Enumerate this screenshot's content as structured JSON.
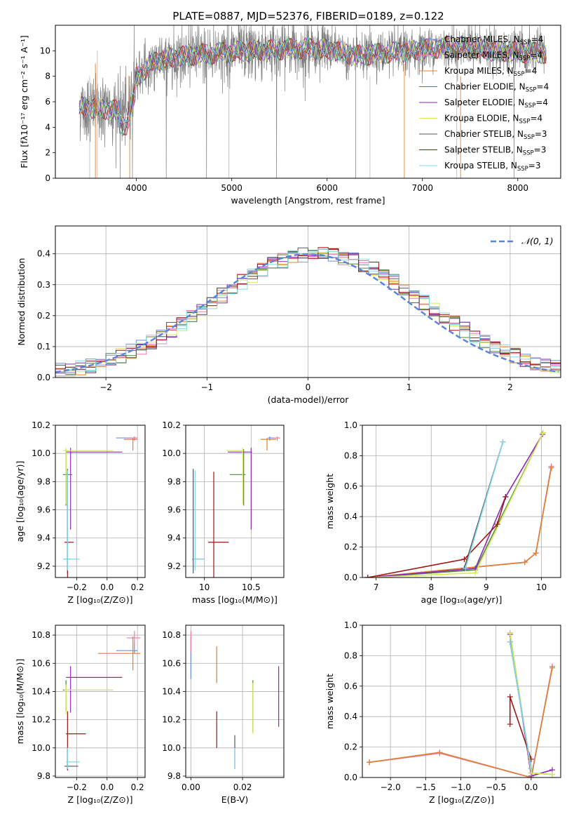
{
  "figure_title": "PLATE=0887, MJD=52376, FIBERID=0189, z=0.122",
  "colors": {
    "Chabrier MILES": "#6a8fe0",
    "Salpeter MILES": "#f07aa8",
    "Kroupa MILES": "#e08030",
    "Chabrier ELODIE": "#4f8a3f",
    "Salpeter ELODIE": "#8d2ab8",
    "Kroupa ELODIE": "#d8e85a",
    "Chabrier STELIB": "#555555",
    "Salpeter STELIB": "#a01515",
    "Kroupa STELIB": "#80d8e8",
    "gaussian": "#5b86d8",
    "grid": "#b0b0b0"
  },
  "legend": [
    {
      "name": "Chabrier MILES",
      "label": "Chabrier MILES, N",
      "sub": "SSP",
      "tail": "=4"
    },
    {
      "name": "Salpeter MILES",
      "label": "Salpeter MILES, N",
      "sub": "SSP",
      "tail": "=4"
    },
    {
      "name": "Kroupa MILES",
      "label": "Kroupa MILES, N",
      "sub": "SSP",
      "tail": "=4"
    },
    {
      "name": "Chabrier ELODIE",
      "label": "Chabrier ELODIE, N",
      "sub": "SSP",
      "tail": "=4"
    },
    {
      "name": "Salpeter ELODIE",
      "label": "Salpeter ELODIE, N",
      "sub": "SSP",
      "tail": "=4"
    },
    {
      "name": "Kroupa ELODIE",
      "label": "Kroupa ELODIE, N",
      "sub": "SSP",
      "tail": "=4"
    },
    {
      "name": "Chabrier STELIB",
      "label": "Chabrier STELIB, N",
      "sub": "SSP",
      "tail": "=3"
    },
    {
      "name": "Salpeter STELIB",
      "label": "Salpeter STELIB, N",
      "sub": "SSP",
      "tail": "=3"
    },
    {
      "name": "Kroupa STELIB",
      "label": "Kroupa STELIB, N",
      "sub": "SSP",
      "tail": "=3"
    }
  ],
  "chart_data": [
    {
      "id": "spectrum",
      "type": "line",
      "xlabel": "wavelength [Angstrom, rest frame]",
      "ylabel": "Flux [fλ10⁻¹⁷ erg cm⁻² s⁻¹ A⁻¹]",
      "xlim": [
        3150,
        8450
      ],
      "ylim": [
        0,
        12
      ],
      "xticks": [
        4000,
        5000,
        6000,
        7000,
        8000
      ],
      "yticks": [
        0,
        2,
        4,
        6,
        8,
        10
      ],
      "grid": false,
      "legend_position": "right",
      "data_wavelength_range": [
        3400,
        8300
      ],
      "model_anchor_points": {
        "x": [
          3400,
          3700,
          3900,
          4000,
          4200,
          4500,
          5000,
          5500,
          5800,
          6100,
          6300,
          6600,
          6900,
          7100,
          7400,
          7700,
          8000,
          8300
        ],
        "y": [
          5.6,
          5.4,
          5.2,
          8.0,
          9.2,
          9.6,
          9.9,
          10.1,
          10.2,
          10.0,
          9.6,
          9.8,
          10.0,
          10.2,
          10.3,
          10.0,
          9.9,
          9.8
        ]
      }
    },
    {
      "id": "residuals",
      "type": "step",
      "xlabel": "(data-model)/error",
      "ylabel": "Normed distribution",
      "xlim": [
        -2.5,
        2.5
      ],
      "ylim": [
        0,
        0.49
      ],
      "xticks": [
        -2,
        -1,
        0,
        1,
        2
      ],
      "xtick_labels": [
        "−2",
        "−1",
        "0",
        "1",
        "2"
      ],
      "yticks": [
        0.0,
        0.1,
        0.2,
        0.3,
        0.4
      ],
      "grid": true,
      "legend": {
        "label": "𝒩(0, 1)",
        "position": "top-right"
      },
      "gaussian": {
        "mean": 0,
        "sigma": 1
      }
    },
    {
      "id": "age_vs_Z",
      "type": "errorbar",
      "xlabel": "Z [log₁₀(Z/Z⊙)]",
      "ylabel": "age  [log₁₀(age/yr)]",
      "xlim": [
        -0.34,
        0.25
      ],
      "ylim": [
        9.12,
        10.2
      ],
      "xticks": [
        -0.2,
        0.0,
        0.2
      ],
      "xtick_labels": [
        "−0.2",
        "0.0",
        "0.2"
      ],
      "yticks": [
        9.2,
        9.4,
        9.6,
        9.8,
        10.0,
        10.2
      ],
      "grid": true,
      "points": [
        {
          "series": "Chabrier MILES",
          "x": 0.18,
          "xerr": [
            0.12,
            0.02
          ],
          "y": 10.11,
          "yerr": [
            0.02,
            0.01
          ]
        },
        {
          "series": "Salpeter MILES",
          "x": 0.18,
          "xerr": [
            0.05,
            0.02
          ],
          "y": 10.11,
          "yerr": [
            0.02,
            0.01
          ]
        },
        {
          "series": "Kroupa MILES",
          "x": 0.17,
          "xerr": [
            0.06,
            0.03
          ],
          "y": 10.1,
          "yerr": [
            0.08,
            0.01
          ]
        },
        {
          "series": "Chabrier ELODIE",
          "x": -0.27,
          "xerr": [
            0.02,
            0.04
          ],
          "y": 9.85,
          "yerr": [
            0.22,
            0.18
          ]
        },
        {
          "series": "Salpeter ELODIE",
          "x": -0.24,
          "xerr": [
            0.03,
            0.34
          ],
          "y": 10.01,
          "yerr": [
            0.55,
            0.03
          ]
        },
        {
          "series": "Kroupa ELODIE",
          "x": -0.27,
          "xerr": [
            0.02,
            0.31
          ],
          "y": 10.02,
          "yerr": [
            0.38,
            0.02
          ]
        },
        {
          "series": "Chabrier STELIB",
          "x": -0.26,
          "xerr": [
            0.02,
            0.02
          ],
          "y": 9.25,
          "yerr": [
            0.1,
            0.64
          ]
        },
        {
          "series": "Salpeter STELIB",
          "x": -0.26,
          "xerr": [
            0.02,
            0.04
          ],
          "y": 9.37,
          "yerr": [
            0.25,
            0.5
          ]
        },
        {
          "series": "Kroupa STELIB",
          "x": -0.26,
          "xerr": [
            0.03,
            0.08
          ],
          "y": 9.25,
          "yerr": [
            0.08,
            0.63
          ]
        }
      ]
    },
    {
      "id": "age_vs_mass",
      "type": "errorbar",
      "xlabel": "mass [log₁₀(M/M⊙)]",
      "ylabel": "",
      "xlim": [
        9.8,
        10.85
      ],
      "ylim": [
        9.12,
        10.2
      ],
      "xticks": [
        10.0,
        10.5
      ],
      "yticks": [
        9.2,
        9.4,
        9.6,
        9.8,
        10.0,
        10.2
      ],
      "grid": true,
      "points": [
        {
          "series": "Chabrier MILES",
          "x": 10.7,
          "xerr": [
            0.02,
            0.06
          ],
          "y": 10.11,
          "yerr": [
            0.02,
            0.01
          ]
        },
        {
          "series": "Salpeter MILES",
          "x": 10.78,
          "xerr": [
            0.05,
            0.03
          ],
          "y": 10.11,
          "yerr": [
            0.02,
            0.01
          ]
        },
        {
          "series": "Kroupa MILES",
          "x": 10.67,
          "xerr": [
            0.07,
            0.1
          ],
          "y": 10.1,
          "yerr": [
            0.08,
            0.01
          ]
        },
        {
          "series": "Chabrier ELODIE",
          "x": 10.42,
          "xerr": [
            0.15,
            0.02
          ],
          "y": 9.85,
          "yerr": [
            0.22,
            0.18
          ]
        },
        {
          "series": "Salpeter ELODIE",
          "x": 10.5,
          "xerr": [
            0.25,
            0.01
          ],
          "y": 10.01,
          "yerr": [
            0.55,
            0.03
          ]
        },
        {
          "series": "Kroupa ELODIE",
          "x": 10.41,
          "xerr": [
            0.17,
            0.01
          ],
          "y": 10.02,
          "yerr": [
            0.38,
            0.02
          ]
        },
        {
          "series": "Chabrier STELIB",
          "x": 9.88,
          "xerr": [
            0.01,
            0.12
          ],
          "y": 9.25,
          "yerr": [
            0.1,
            0.64
          ]
        },
        {
          "series": "Salpeter STELIB",
          "x": 10.1,
          "xerr": [
            0.06,
            0.16
          ],
          "y": 9.37,
          "yerr": [
            0.25,
            0.5
          ]
        },
        {
          "series": "Kroupa STELIB",
          "x": 9.9,
          "xerr": [
            0.02,
            0.1
          ],
          "y": 9.25,
          "yerr": [
            0.08,
            0.63
          ]
        }
      ]
    },
    {
      "id": "weight_vs_age",
      "type": "line",
      "xlabel": "age  [log₁₀(age/yr)]",
      "ylabel": "mass weight",
      "xlim": [
        6.75,
        10.35
      ],
      "ylim": [
        0,
        1.0
      ],
      "xticks": [
        7,
        8,
        9,
        10
      ],
      "yticks": [
        0.0,
        0.2,
        0.4,
        0.6,
        0.8,
        1.0
      ],
      "grid": true,
      "series": [
        {
          "name": "Chabrier MILES",
          "x": [
            6.85,
            9.7,
            9.9,
            10.18
          ],
          "y": [
            0.0,
            0.1,
            0.16,
            0.73
          ]
        },
        {
          "name": "Salpeter MILES",
          "x": [
            6.85,
            9.7,
            9.9,
            10.18
          ],
          "y": [
            0.0,
            0.1,
            0.16,
            0.73
          ]
        },
        {
          "name": "Kroupa MILES",
          "x": [
            6.85,
            9.7,
            9.9,
            10.18
          ],
          "y": [
            0.0,
            0.1,
            0.16,
            0.72
          ]
        },
        {
          "name": "Chabrier ELODIE",
          "x": [
            6.85,
            8.8,
            10.03
          ],
          "y": [
            0.0,
            0.05,
            0.95
          ]
        },
        {
          "name": "Salpeter ELODIE",
          "x": [
            6.85,
            8.8,
            9.35,
            10.02
          ],
          "y": [
            0.0,
            0.06,
            0.53,
            0.94
          ]
        },
        {
          "name": "Kroupa ELODIE",
          "x": [
            6.85,
            8.8,
            10.03
          ],
          "y": [
            0.0,
            0.03,
            0.95
          ]
        },
        {
          "name": "Chabrier STELIB",
          "x": [
            8.6,
            9.3
          ],
          "y": [
            0.06,
            0.89
          ]
        },
        {
          "name": "Salpeter STELIB",
          "x": [
            6.85,
            8.6,
            9.2,
            9.35
          ],
          "y": [
            0.0,
            0.12,
            0.35,
            0.53
          ]
        },
        {
          "name": "Kroupa STELIB",
          "x": [
            8.62,
            9.3
          ],
          "y": [
            0.06,
            0.89
          ]
        }
      ]
    },
    {
      "id": "mass_vs_Z",
      "type": "errorbar",
      "xlabel": "Z [log₁₀(Z/Z⊙)]",
      "ylabel": "mass [log₁₀(M/M⊙)]",
      "xlim": [
        -0.34,
        0.25
      ],
      "ylim": [
        9.79,
        10.87
      ],
      "xticks": [
        -0.2,
        0.0,
        0.2
      ],
      "xtick_labels": [
        "−0.2",
        "0.0",
        "0.2"
      ],
      "yticks": [
        9.8,
        10.0,
        10.2,
        10.4,
        10.6,
        10.8
      ],
      "grid": true,
      "points": [
        {
          "series": "Chabrier MILES",
          "x": 0.18,
          "xerr": [
            0.12,
            0.02
          ],
          "y": 10.69,
          "yerr": [
            0.02,
            0.06
          ]
        },
        {
          "series": "Salpeter MILES",
          "x": 0.18,
          "xerr": [
            0.05,
            0.04
          ],
          "y": 10.78,
          "yerr": [
            0.05,
            0.05
          ]
        },
        {
          "series": "Kroupa MILES",
          "x": 0.17,
          "xerr": [
            0.23,
            0.05
          ],
          "y": 10.67,
          "yerr": [
            0.12,
            0.12
          ]
        },
        {
          "series": "Chabrier ELODIE",
          "x": -0.27,
          "xerr": [
            0.02,
            0.3
          ],
          "y": 10.41,
          "yerr": [
            0.15,
            0.07
          ]
        },
        {
          "series": "Salpeter ELODIE",
          "x": -0.24,
          "xerr": [
            0.03,
            0.34
          ],
          "y": 10.5,
          "yerr": [
            0.25,
            0.08
          ]
        },
        {
          "series": "Kroupa ELODIE",
          "x": -0.27,
          "xerr": [
            0.01,
            0.31
          ],
          "y": 10.41,
          "yerr": [
            0.17,
            0.04
          ]
        },
        {
          "series": "Chabrier STELIB",
          "x": -0.26,
          "xerr": [
            0.02,
            0.07
          ],
          "y": 9.87,
          "yerr": [
            0.02,
            0.12
          ]
        },
        {
          "series": "Salpeter STELIB",
          "x": -0.26,
          "xerr": [
            0.01,
            0.12
          ],
          "y": 10.1,
          "yerr": [
            0.26,
            0.16
          ]
        },
        {
          "series": "Kroupa STELIB",
          "x": -0.26,
          "xerr": [
            0.01,
            0.08
          ],
          "y": 9.9,
          "yerr": [
            0.05,
            0.1
          ]
        }
      ]
    },
    {
      "id": "mass_vs_ebv",
      "type": "errorbar",
      "xlabel": "E(B-V)",
      "ylabel": "",
      "xlim": [
        -0.002,
        0.036
      ],
      "ylim": [
        9.79,
        10.87
      ],
      "xticks": [
        0.0,
        0.02
      ],
      "xtick_labels": [
        "0.00",
        "0.02"
      ],
      "yticks": [
        9.8,
        10.0,
        10.2,
        10.4,
        10.6,
        10.8
      ],
      "grid": true,
      "points": [
        {
          "series": "Chabrier MILES",
          "x": 0.0,
          "y": 10.69,
          "yerr": [
            0.2,
            0.1
          ]
        },
        {
          "series": "Salpeter MILES",
          "x": 0.0,
          "y": 10.78,
          "yerr": [
            0.1,
            0.05
          ]
        },
        {
          "series": "Kroupa MILES",
          "x": 0.01,
          "y": 10.6,
          "yerr": [
            0.14,
            0.12
          ]
        },
        {
          "series": "Chabrier ELODIE",
          "x": 0.024,
          "y": 10.41,
          "yerr": [
            0.3,
            0.07
          ]
        },
        {
          "series": "Salpeter ELODIE",
          "x": 0.034,
          "y": 10.5,
          "yerr": [
            0.35,
            0.08
          ]
        },
        {
          "series": "Kroupa ELODIE",
          "x": 0.024,
          "y": 10.41,
          "yerr": [
            0.31,
            0.05
          ]
        },
        {
          "series": "Chabrier STELIB",
          "x": 0.017,
          "y": 9.87,
          "yerr": [
            0.02,
            0.22
          ]
        },
        {
          "series": "Salpeter STELIB",
          "x": 0.01,
          "y": 10.1,
          "yerr": [
            0.1,
            0.16
          ]
        },
        {
          "series": "Kroupa STELIB",
          "x": 0.017,
          "y": 9.9,
          "yerr": [
            0.05,
            0.1
          ]
        }
      ]
    },
    {
      "id": "weight_vs_Z",
      "type": "line",
      "xlabel": "Z [log₁₀(Z/Z⊙)]",
      "ylabel": "mass weight",
      "xlim": [
        -2.4,
        0.42
      ],
      "ylim": [
        0,
        1.0
      ],
      "xticks": [
        -2.0,
        -1.5,
        -1.0,
        -0.5,
        0.0
      ],
      "xtick_labels": [
        "−2.0",
        "−1.5",
        "−1.0",
        "−0.5",
        "0.0"
      ],
      "yticks": [
        0.0,
        0.2,
        0.4,
        0.6,
        0.8,
        1.0
      ],
      "grid": true,
      "series": [
        {
          "name": "Chabrier MILES",
          "x": [
            -2.3,
            -1.3,
            0.0,
            0.3
          ],
          "y": [
            0.1,
            0.16,
            0.0,
            0.73
          ]
        },
        {
          "name": "Salpeter MILES",
          "x": [
            -2.3,
            -1.3,
            0.0,
            0.3
          ],
          "y": [
            0.1,
            0.16,
            0.0,
            0.73
          ]
        },
        {
          "name": "Kroupa MILES",
          "x": [
            -2.3,
            -1.3,
            0.0,
            0.3
          ],
          "y": [
            0.1,
            0.165,
            0.0,
            0.72
          ]
        },
        {
          "name": "Chabrier ELODIE",
          "x": [
            -0.3,
            0.0,
            0.3
          ],
          "y": [
            0.95,
            0.03,
            0.02
          ]
        },
        {
          "name": "Salpeter ELODIE",
          "x": [
            -0.3,
            0.0,
            0.3
          ],
          "y": [
            0.94,
            0.01,
            0.05
          ]
        },
        {
          "name": "Kroupa ELODIE",
          "x": [
            -0.3,
            0.0,
            0.3
          ],
          "y": [
            0.95,
            0.03,
            0.02
          ]
        },
        {
          "name": "Chabrier STELIB",
          "x": [
            -0.3,
            0.0
          ],
          "y": [
            0.89,
            0.06
          ]
        },
        {
          "name": "Salpeter STELIB",
          "x": [
            -0.3,
            -0.3,
            0.0
          ],
          "y": [
            0.35,
            0.53,
            0.12
          ]
        },
        {
          "name": "Kroupa STELIB",
          "x": [
            -0.3,
            0.0
          ],
          "y": [
            0.89,
            0.06
          ]
        }
      ]
    }
  ]
}
